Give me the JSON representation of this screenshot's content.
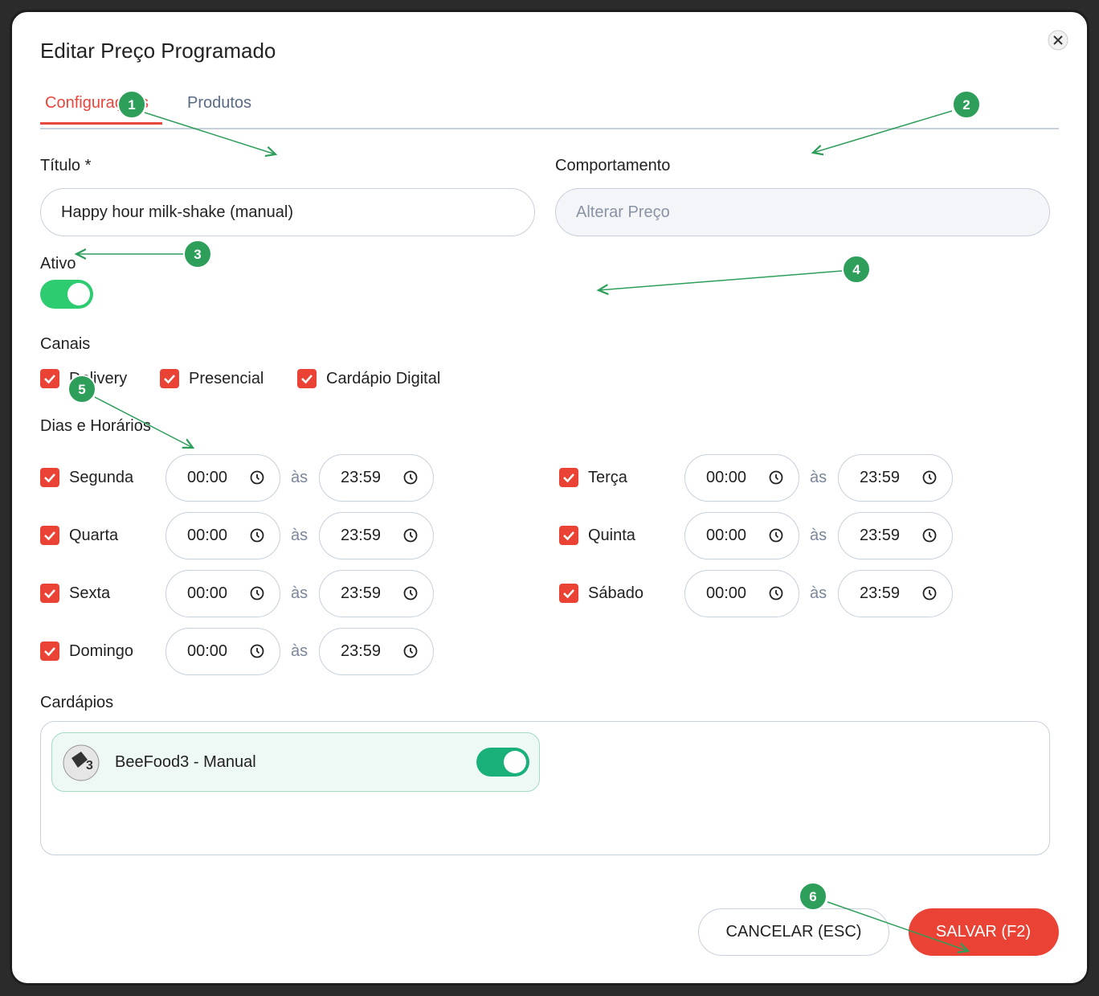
{
  "header": {
    "title": "Editar Preço Programado"
  },
  "tabs": [
    "Configurações",
    "Produtos"
  ],
  "form": {
    "title_label": "Título *",
    "title_value": "Happy hour milk-shake (manual)",
    "behavior_label": "Comportamento",
    "behavior_placeholder": "Alterar Preço",
    "active_label": "Ativo",
    "channels_label": "Canais",
    "channels": [
      "Delivery",
      "Presencial",
      "Cardápio Digital"
    ],
    "schedule_label": "Dias e Horários",
    "schedule": [
      {
        "day": "Segunda",
        "start": "00:00",
        "separator": "às",
        "end": "23:59"
      },
      {
        "day": "Terça",
        "start": "00:00",
        "separator": "às",
        "end": "23:59"
      },
      {
        "day": "Quarta",
        "start": "00:00",
        "separator": "às",
        "end": "23:59"
      },
      {
        "day": "Quinta",
        "start": "00:00",
        "separator": "às",
        "end": "23:59"
      },
      {
        "day": "Sexta",
        "start": "00:00",
        "separator": "às",
        "end": "23:59"
      },
      {
        "day": "Sábado",
        "start": "00:00",
        "separator": "às",
        "end": "23:59"
      },
      {
        "day": "Domingo",
        "start": "00:00",
        "separator": "às",
        "end": "23:59"
      }
    ],
    "menus_label": "Cardápios",
    "menus": [
      "BeeFood3 - Manual"
    ]
  },
  "buttons": {
    "cancel": "CANCELAR (ESC)",
    "save": "SALVAR (F2)"
  },
  "annotations": [
    "1",
    "2",
    "3",
    "4",
    "5",
    "6"
  ]
}
